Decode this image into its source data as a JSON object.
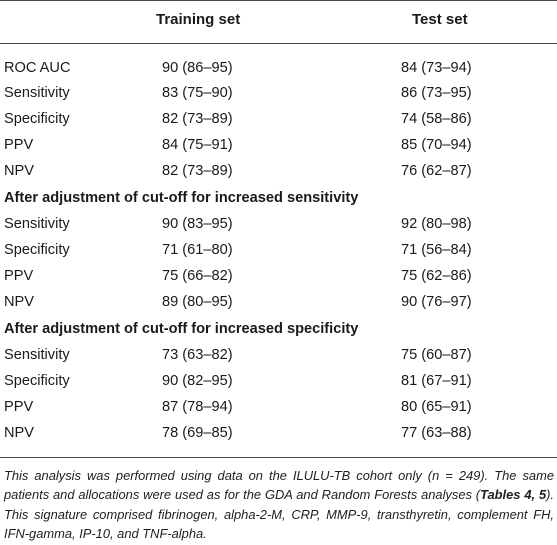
{
  "header": {
    "col1": "Training set",
    "col2": "Test set"
  },
  "rows_main": [
    [
      "ROC AUC",
      "90 (86–95)",
      "84 (73–94)"
    ],
    [
      "Sensitivity",
      "83 (75–90)",
      "86 (73–95)"
    ],
    [
      "Specificity",
      "82 (73–89)",
      "74 (58–86)"
    ],
    [
      "PPV",
      "84 (75–91)",
      "85 (70–94)"
    ],
    [
      "NPV",
      "82 (73–89)",
      "76 (62–87)"
    ]
  ],
  "section1": {
    "title": "After adjustment of cut-off for increased sensitivity",
    "rows": [
      [
        "Sensitivity",
        "90 (83–95)",
        "92 (80–98)"
      ],
      [
        "Specificity",
        "71 (61–80)",
        "71 (56–84)"
      ],
      [
        "PPV",
        "75 (66–82)",
        "75 (62–86)"
      ],
      [
        "NPV",
        "89 (80–95)",
        "90 (76–97)"
      ]
    ]
  },
  "section2": {
    "title": "After adjustment of cut-off for increased specificity",
    "rows": [
      [
        "Sensitivity",
        "73 (63–82)",
        "75 (60–87)"
      ],
      [
        "Specificity",
        "90 (82–95)",
        "81 (67–91)"
      ],
      [
        "PPV",
        "87 (78–94)",
        "80 (65–91)"
      ],
      [
        "NPV",
        "78 (69–85)",
        "77 (63–88)"
      ]
    ]
  },
  "footnote": {
    "part1": "This analysis was performed using data on the ILULU-TB cohort only (n = 249). The same patients and allocations were used as for the GDA and Random Forests analyses (",
    "bold": "Tables 4, 5",
    "part2": "). This signature comprised fibrinogen, alpha-2-M, CRP, MMP-9, transthyretin, complement FH, IFN-gamma, IP-10, and TNF-alpha."
  }
}
